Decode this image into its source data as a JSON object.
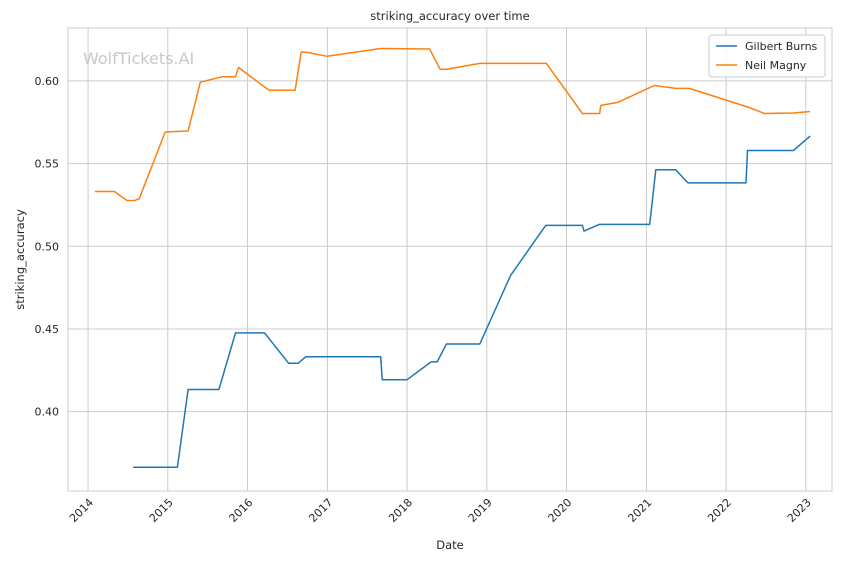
{
  "chart_data": {
    "type": "line",
    "title": "striking_accuracy over time",
    "xlabel": "Date",
    "ylabel": "striking_accuracy",
    "watermark": "WolfTickets.AI",
    "x_axis": "date",
    "xlim": [
      "2013-10-01",
      "2023-05-01"
    ],
    "ylim": [
      0.352,
      0.632
    ],
    "x_ticks": [
      "2014",
      "2015",
      "2016",
      "2017",
      "2018",
      "2019",
      "2020",
      "2021",
      "2022",
      "2023"
    ],
    "y_ticks": [
      "0.40",
      "0.45",
      "0.50",
      "0.55",
      "0.60"
    ],
    "grid": true,
    "legend_position": "top-right",
    "colors": {
      "Gilbert Burns": "#1f77b4",
      "Neil Magny": "#ff7f0e",
      "grid": "#cccccc",
      "axes_edge": "#cccccc"
    },
    "series": [
      {
        "name": "Gilbert Burns",
        "points": [
          [
            "2014-07-26",
            0.3664
          ],
          [
            "2015-02-14",
            0.3664
          ],
          [
            "2015-04-04",
            0.4134
          ],
          [
            "2015-08-23",
            0.4134
          ],
          [
            "2015-11-07",
            0.4476
          ],
          [
            "2016-03-19",
            0.4476
          ],
          [
            "2016-07-08",
            0.4292
          ],
          [
            "2016-08-20",
            0.4292
          ],
          [
            "2016-09-24",
            0.4332
          ],
          [
            "2017-09-02",
            0.4332
          ],
          [
            "2017-09-09",
            0.4193
          ],
          [
            "2018-01-01",
            0.4193
          ],
          [
            "2018-04-21",
            0.4301
          ],
          [
            "2018-05-19",
            0.4301
          ],
          [
            "2018-06-30",
            0.4409
          ],
          [
            "2018-11-30",
            0.4409
          ],
          [
            "2019-04-20",
            0.4824
          ],
          [
            "2019-08-17",
            0.5048
          ],
          [
            "2019-09-28",
            0.5126
          ],
          [
            "2020-03-14",
            0.5126
          ],
          [
            "2020-03-21",
            0.5092
          ],
          [
            "2020-05-30",
            0.5132
          ],
          [
            "2021-01-16",
            0.5132
          ],
          [
            "2021-02-13",
            0.5463
          ],
          [
            "2021-05-15",
            0.5463
          ],
          [
            "2021-07-10",
            0.5383
          ],
          [
            "2022-04-02",
            0.5383
          ],
          [
            "2022-04-09",
            0.5579
          ],
          [
            "2022-11-05",
            0.5579
          ],
          [
            "2023-01-21",
            0.5666
          ]
        ]
      },
      {
        "name": "Neil Magny",
        "points": [
          [
            "2014-02-01",
            0.5331
          ],
          [
            "2014-05-01",
            0.5331
          ],
          [
            "2014-06-28",
            0.5277
          ],
          [
            "2014-08-02",
            0.5277
          ],
          [
            "2014-08-23",
            0.5287
          ],
          [
            "2014-12-20",
            0.5691
          ],
          [
            "2015-04-04",
            0.5697
          ],
          [
            "2015-05-30",
            0.5992
          ],
          [
            "2015-09-05",
            0.6025
          ],
          [
            "2015-11-07",
            0.6025
          ],
          [
            "2015-11-21",
            0.6081
          ],
          [
            "2016-04-09",
            0.5943
          ],
          [
            "2016-08-06",
            0.5943
          ],
          [
            "2016-09-03",
            0.6174
          ],
          [
            "2016-09-24",
            0.6174
          ],
          [
            "2016-12-31",
            0.6149
          ],
          [
            "2017-09-02",
            0.6196
          ],
          [
            "2018-04-14",
            0.6193
          ],
          [
            "2018-06-01",
            0.6071
          ],
          [
            "2018-07-01",
            0.6071
          ],
          [
            "2018-12-01",
            0.6106
          ],
          [
            "2019-10-01",
            0.6106
          ],
          [
            "2020-03-14",
            0.5803
          ],
          [
            "2020-06-01",
            0.5803
          ],
          [
            "2020-06-06",
            0.5852
          ],
          [
            "2020-08-22",
            0.587
          ],
          [
            "2021-02-06",
            0.5972
          ],
          [
            "2021-05-15",
            0.5955
          ],
          [
            "2021-07-17",
            0.5955
          ],
          [
            "2022-03-26",
            0.5848
          ],
          [
            "2022-04-16",
            0.584
          ],
          [
            "2022-06-25",
            0.5803
          ],
          [
            "2022-11-05",
            0.5806
          ],
          [
            "2023-01-21",
            0.5815
          ]
        ]
      }
    ]
  }
}
